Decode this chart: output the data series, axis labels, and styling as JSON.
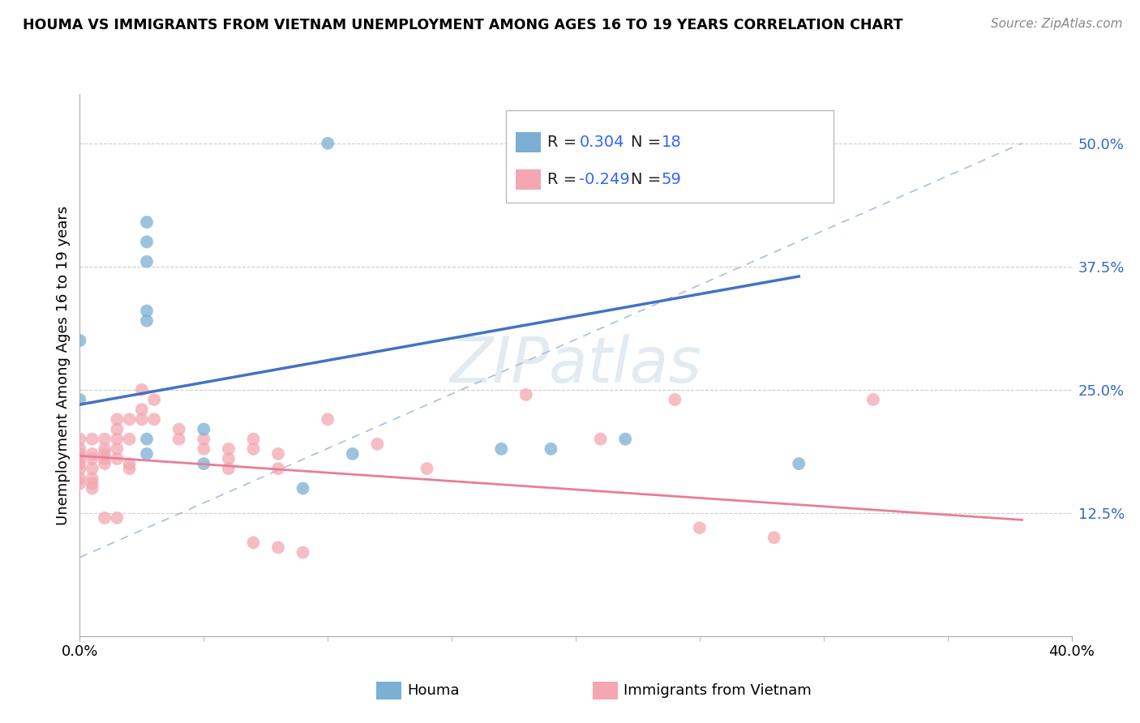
{
  "title": "HOUMA VS IMMIGRANTS FROM VIETNAM UNEMPLOYMENT AMONG AGES 16 TO 19 YEARS CORRELATION CHART",
  "source": "Source: ZipAtlas.com",
  "ylabel": "Unemployment Among Ages 16 to 19 years",
  "xlim": [
    0.0,
    0.4
  ],
  "ylim": [
    0.0,
    0.55
  ],
  "yticks": [
    0.0,
    0.125,
    0.25,
    0.375,
    0.5
  ],
  "ytick_labels": [
    "",
    "12.5%",
    "25.0%",
    "37.5%",
    "50.0%"
  ],
  "houma_color": "#7BAFD4",
  "vietnam_color": "#F4A7B0",
  "houma_line_color": "#4472C4",
  "vietnam_line_color": "#E87E96",
  "dash_color": "#A8BFDE",
  "houma_R": 0.304,
  "houma_N": 18,
  "vietnam_R": -0.249,
  "vietnam_N": 59,
  "watermark": "ZIPatlas",
  "houma_points": [
    [
      0.0,
      0.24
    ],
    [
      0.0,
      0.3
    ],
    [
      0.027,
      0.42
    ],
    [
      0.027,
      0.4
    ],
    [
      0.027,
      0.38
    ],
    [
      0.027,
      0.33
    ],
    [
      0.027,
      0.32
    ],
    [
      0.027,
      0.2
    ],
    [
      0.027,
      0.185
    ],
    [
      0.05,
      0.21
    ],
    [
      0.05,
      0.175
    ],
    [
      0.09,
      0.15
    ],
    [
      0.1,
      0.5
    ],
    [
      0.11,
      0.185
    ],
    [
      0.17,
      0.19
    ],
    [
      0.19,
      0.19
    ],
    [
      0.22,
      0.2
    ],
    [
      0.29,
      0.175
    ]
  ],
  "vietnam_points": [
    [
      0.0,
      0.2
    ],
    [
      0.0,
      0.19
    ],
    [
      0.0,
      0.185
    ],
    [
      0.0,
      0.18
    ],
    [
      0.0,
      0.175
    ],
    [
      0.0,
      0.17
    ],
    [
      0.0,
      0.16
    ],
    [
      0.0,
      0.155
    ],
    [
      0.005,
      0.2
    ],
    [
      0.005,
      0.185
    ],
    [
      0.005,
      0.18
    ],
    [
      0.005,
      0.17
    ],
    [
      0.005,
      0.16
    ],
    [
      0.005,
      0.155
    ],
    [
      0.005,
      0.15
    ],
    [
      0.01,
      0.2
    ],
    [
      0.01,
      0.19
    ],
    [
      0.01,
      0.185
    ],
    [
      0.01,
      0.18
    ],
    [
      0.01,
      0.175
    ],
    [
      0.01,
      0.12
    ],
    [
      0.015,
      0.22
    ],
    [
      0.015,
      0.21
    ],
    [
      0.015,
      0.2
    ],
    [
      0.015,
      0.19
    ],
    [
      0.015,
      0.18
    ],
    [
      0.015,
      0.12
    ],
    [
      0.02,
      0.22
    ],
    [
      0.02,
      0.2
    ],
    [
      0.02,
      0.175
    ],
    [
      0.02,
      0.17
    ],
    [
      0.025,
      0.25
    ],
    [
      0.025,
      0.23
    ],
    [
      0.025,
      0.22
    ],
    [
      0.03,
      0.24
    ],
    [
      0.03,
      0.22
    ],
    [
      0.04,
      0.21
    ],
    [
      0.04,
      0.2
    ],
    [
      0.05,
      0.2
    ],
    [
      0.05,
      0.19
    ],
    [
      0.06,
      0.19
    ],
    [
      0.06,
      0.18
    ],
    [
      0.06,
      0.17
    ],
    [
      0.07,
      0.2
    ],
    [
      0.07,
      0.19
    ],
    [
      0.07,
      0.095
    ],
    [
      0.08,
      0.185
    ],
    [
      0.08,
      0.17
    ],
    [
      0.08,
      0.09
    ],
    [
      0.09,
      0.085
    ],
    [
      0.1,
      0.22
    ],
    [
      0.12,
      0.195
    ],
    [
      0.14,
      0.17
    ],
    [
      0.18,
      0.245
    ],
    [
      0.21,
      0.2
    ],
    [
      0.24,
      0.24
    ],
    [
      0.25,
      0.11
    ],
    [
      0.28,
      0.1
    ],
    [
      0.32,
      0.24
    ]
  ],
  "houma_line": [
    [
      0.0,
      0.235
    ],
    [
      0.29,
      0.365
    ]
  ],
  "vietnam_line": [
    [
      0.0,
      0.183
    ],
    [
      0.38,
      0.118
    ]
  ]
}
